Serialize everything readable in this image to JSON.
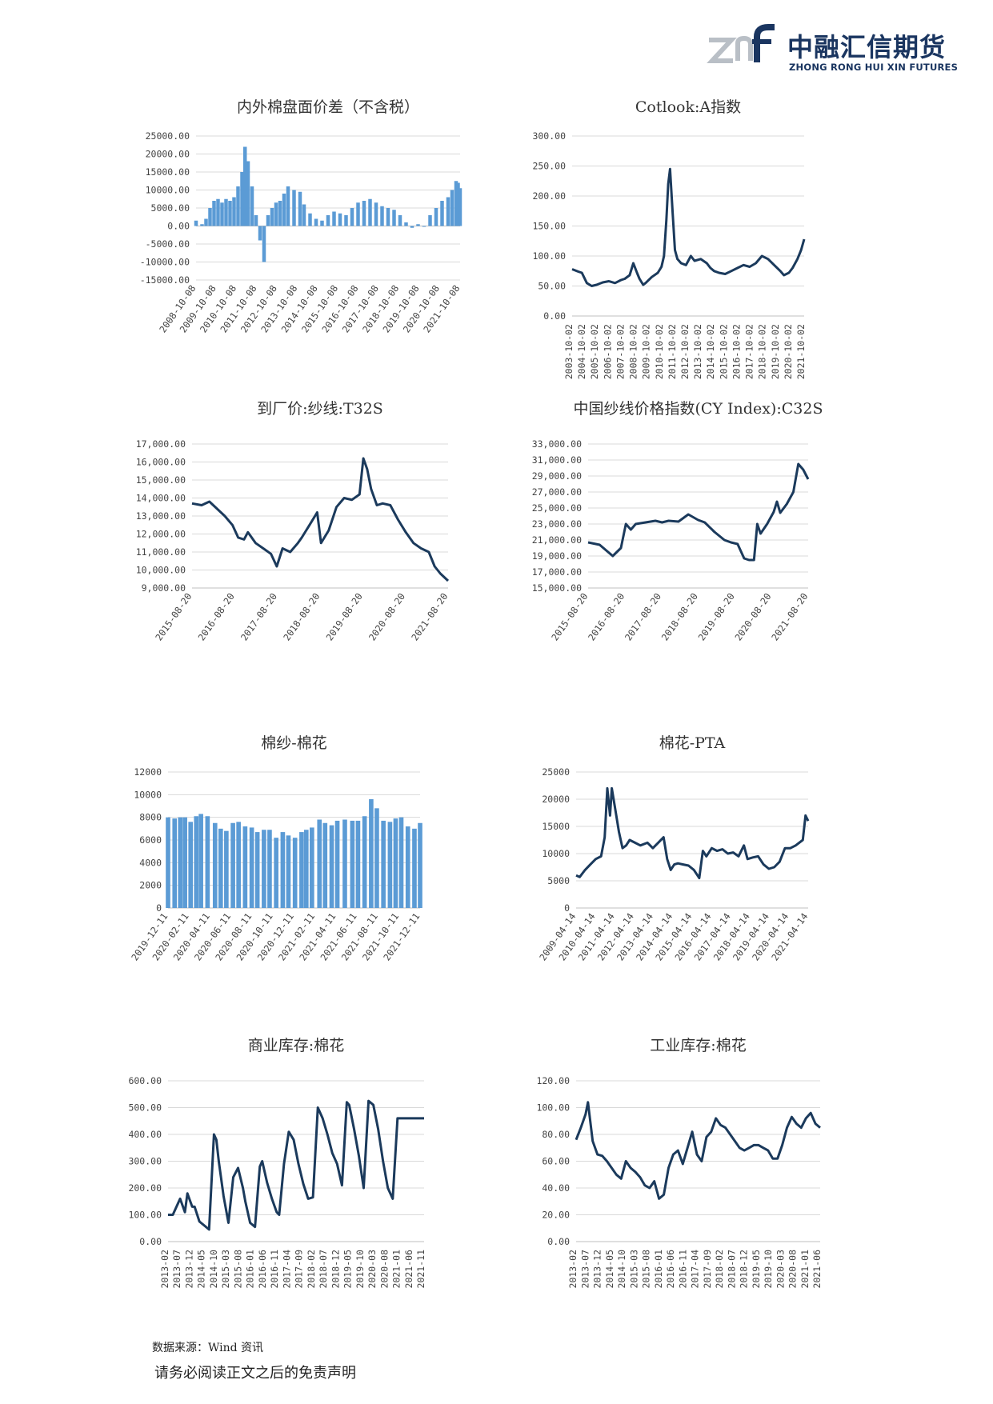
{
  "header": {
    "logo_cn": "中融汇信期货",
    "logo_en": "ZHONG RONG HUI XIN FUTURES",
    "logo_mark": "znf"
  },
  "colors": {
    "line": "#1b3a5c",
    "bar": "#5b9bd5",
    "grid": "#d9d9d9",
    "logo": "#1a3560"
  },
  "footer": {
    "source": "数据来源：Wind 资讯",
    "disclaimer": "请务必阅读正文之后的免责声明"
  },
  "chart_data": [
    {
      "id": "c1",
      "type": "bar",
      "title": "内外棉盘面价差（不含税）",
      "x_axis": "bottom",
      "yticks": [
        "25000.00",
        "20000.00",
        "15000.00",
        "10000.00",
        "5000.00",
        "0.00",
        "-5000.00",
        "-10000.00",
        "-15000.00"
      ],
      "ylim": [
        -15000,
        25000
      ],
      "xticks": [
        "2008-10-08",
        "2009-10-08",
        "2010-10-08",
        "2011-10-08",
        "2012-10-08",
        "2013-10-08",
        "2014-10-08",
        "2015-10-08",
        "2016-10-08",
        "2017-10-08",
        "2018-10-08",
        "2019-10-08",
        "2020-10-08",
        "2021-10-08"
      ],
      "x": [
        2008.6,
        2008.9,
        2009.1,
        2009.3,
        2009.5,
        2009.7,
        2009.9,
        2010.1,
        2010.3,
        2010.5,
        2010.7,
        2010.9,
        2011.05,
        2011.2,
        2011.4,
        2011.6,
        2011.8,
        2012.0,
        2012.2,
        2012.4,
        2012.6,
        2012.8,
        2013.0,
        2013.2,
        2013.5,
        2013.8,
        2014.0,
        2014.3,
        2014.6,
        2014.9,
        2015.2,
        2015.5,
        2015.8,
        2016.1,
        2016.4,
        2016.7,
        2017.0,
        2017.3,
        2017.6,
        2017.9,
        2018.2,
        2018.5,
        2018.8,
        2019.1,
        2019.4,
        2019.7,
        2020.0,
        2020.3,
        2020.6,
        2020.9,
        2021.2,
        2021.4,
        2021.6,
        2021.7,
        2021.8
      ],
      "values": [
        1500,
        500,
        2000,
        5000,
        7000,
        7500,
        6500,
        7500,
        7000,
        8000,
        11000,
        15000,
        22000,
        18000,
        11000,
        3000,
        -4000,
        -10000,
        3000,
        5000,
        6500,
        7000,
        9000,
        11000,
        10000,
        9500,
        6000,
        3500,
        2000,
        1500,
        3000,
        4000,
        3500,
        3000,
        5000,
        6500,
        7000,
        7500,
        6500,
        5500,
        5000,
        4500,
        3000,
        1000,
        -500,
        500,
        0,
        3000,
        5000,
        7000,
        8000,
        10000,
        12500,
        12000,
        10500
      ]
    },
    {
      "id": "c2",
      "type": "line",
      "title": "Cotlook:A指数",
      "x_axis": "bottom",
      "yticks": [
        "300.00",
        "250.00",
        "200.00",
        "150.00",
        "100.00",
        "50.00",
        "0.00"
      ],
      "ylim": [
        0,
        300
      ],
      "xticks": [
        "2003-10-02",
        "2004-10-02",
        "2005-10-02",
        "2006-10-02",
        "2007-10-02",
        "2008-10-02",
        "2009-10-02",
        "2010-10-02",
        "2011-10-02",
        "2012-10-02",
        "2013-10-02",
        "2014-10-02",
        "2015-10-02",
        "2016-10-02",
        "2017-10-02",
        "2018-10-02",
        "2019-10-02",
        "2020-10-02",
        "2021-10-02"
      ],
      "x": [
        2003.0,
        2003.5,
        2003.8,
        2004.2,
        2004.6,
        2005.0,
        2005.5,
        2006.0,
        2006.5,
        2007.0,
        2007.3,
        2007.7,
        2008.0,
        2008.3,
        2008.5,
        2008.8,
        2009.0,
        2009.5,
        2010.0,
        2010.3,
        2010.5,
        2010.7,
        2010.85,
        2011.0,
        2011.2,
        2011.4,
        2011.6,
        2011.9,
        2012.3,
        2012.7,
        2013.0,
        2013.5,
        2014.0,
        2014.3,
        2014.6,
        2015.0,
        2015.5,
        2016.0,
        2016.5,
        2017.0,
        2017.5,
        2018.0,
        2018.5,
        2019.0,
        2019.5,
        2020.0,
        2020.3,
        2020.7,
        2021.0,
        2021.4,
        2021.7,
        2021.95
      ],
      "values": [
        78,
        74,
        72,
        55,
        50,
        52,
        56,
        58,
        55,
        60,
        62,
        68,
        88,
        72,
        62,
        52,
        55,
        65,
        72,
        82,
        100,
        160,
        220,
        245,
        175,
        110,
        95,
        88,
        85,
        100,
        92,
        95,
        88,
        80,
        75,
        72,
        70,
        75,
        80,
        85,
        82,
        88,
        100,
        95,
        85,
        75,
        68,
        72,
        80,
        95,
        110,
        128
      ]
    },
    {
      "id": "c3",
      "type": "line",
      "title": "到厂价:纱线:T32S",
      "x_axis": "bottom",
      "yticks": [
        "17,000.00",
        "16,000.00",
        "15,000.00",
        "14,000.00",
        "13,000.00",
        "12,000.00",
        "11,000.00",
        "10,000.00",
        "9,000.00"
      ],
      "ylim": [
        9000,
        17000
      ],
      "xticks": [
        "2015-08-20",
        "2016-08-20",
        "2017-08-20",
        "2018-08-20",
        "2019-08-20",
        "2020-08-20",
        "2021-08-20"
      ],
      "x": [
        2015.55,
        2015.8,
        2016.0,
        2016.2,
        2016.4,
        2016.6,
        2016.75,
        2016.9,
        2017.0,
        2017.2,
        2017.4,
        2017.6,
        2017.75,
        2017.9,
        2018.1,
        2018.3,
        2018.4,
        2018.6,
        2018.8,
        2018.9,
        2019.1,
        2019.3,
        2019.5,
        2019.7,
        2019.9,
        2020.0,
        2020.1,
        2020.2,
        2020.35,
        2020.5,
        2020.7,
        2020.9,
        2021.1,
        2021.3,
        2021.5,
        2021.7,
        2021.85,
        2022.0,
        2022.2
      ],
      "values": [
        13700,
        13600,
        13800,
        13400,
        13000,
        12500,
        11800,
        11700,
        12100,
        11500,
        11200,
        10900,
        10200,
        11200,
        11000,
        11500,
        11800,
        12500,
        13200,
        11500,
        12200,
        13500,
        14000,
        13900,
        14200,
        16200,
        15600,
        14500,
        13600,
        13700,
        13600,
        12800,
        12100,
        11500,
        11200,
        11000,
        10200,
        9800,
        9400
      ]
    },
    {
      "id": "c4",
      "type": "line",
      "title": "中国纱线价格指数(CY Index):C32S",
      "x_axis": "bottom",
      "yticks": [
        "33,000.00",
        "31,000.00",
        "29,000.00",
        "27,000.00",
        "25,000.00",
        "23,000.00",
        "21,000.00",
        "19,000.00",
        "17,000.00",
        "15,000.00"
      ],
      "ylim": [
        15000,
        33000
      ],
      "xticks": [
        "2015-08-20",
        "2016-08-20",
        "2017-08-20",
        "2018-08-20",
        "2019-08-20",
        "2020-08-20",
        "2021-08-20"
      ],
      "x": [
        2015.55,
        2015.9,
        2016.1,
        2016.3,
        2016.55,
        2016.7,
        2016.85,
        2017.0,
        2017.3,
        2017.6,
        2017.8,
        2018.0,
        2018.3,
        2018.6,
        2018.9,
        2019.1,
        2019.4,
        2019.7,
        2019.9,
        2020.1,
        2020.3,
        2020.45,
        2020.6,
        2020.7,
        2020.8,
        2021.0,
        2021.2,
        2021.3,
        2021.4,
        2021.6,
        2021.8,
        2021.95,
        2022.1,
        2022.25
      ],
      "values": [
        20700,
        20400,
        19700,
        19000,
        20000,
        23000,
        22300,
        23000,
        23200,
        23400,
        23200,
        23400,
        23300,
        24200,
        23500,
        23200,
        22000,
        21000,
        20700,
        20500,
        18700,
        18500,
        18500,
        23000,
        21800,
        23000,
        24500,
        25800,
        24400,
        25500,
        27000,
        30500,
        29800,
        28600
      ]
    },
    {
      "id": "c5",
      "type": "bar",
      "title": "棉纱-棉花",
      "x_axis": "bottom",
      "yticks": [
        "12000",
        "10000",
        "8000",
        "6000",
        "4000",
        "2000",
        "0"
      ],
      "ylim": [
        0,
        12000
      ],
      "xticks": [
        "2019-12-11",
        "2020-02-11",
        "2020-04-11",
        "2020-06-11",
        "2020-08-11",
        "2020-10-11",
        "2020-12-11",
        "2021-02-11",
        "2021-04-11",
        "2021-06-11",
        "2021-08-11",
        "2021-10-11",
        "2021-12-11"
      ],
      "x": [
        0.0,
        0.7,
        1.3,
        1.8,
        2.4,
        3.0,
        3.5,
        4.2,
        5.0,
        5.6,
        6.2,
        6.9,
        7.5,
        8.2,
        8.9,
        9.5,
        10.2,
        10.8,
        11.5,
        12.2,
        12.8,
        13.5,
        14.2,
        14.7,
        15.3,
        16.1,
        16.7,
        17.4,
        18.0,
        18.8,
        19.6,
        20.2,
        20.9,
        21.6,
        22.2,
        22.9,
        23.6,
        24.2,
        24.8,
        25.5,
        26.2,
        26.8
      ],
      "values": [
        8000,
        7900,
        8000,
        8000,
        7600,
        8100,
        8300,
        8100,
        7500,
        7000,
        6800,
        7500,
        7600,
        7200,
        7100,
        6700,
        6900,
        6900,
        6200,
        6700,
        6400,
        6200,
        6700,
        6900,
        7100,
        7800,
        7500,
        7300,
        7700,
        7800,
        7700,
        7700,
        8100,
        9600,
        8800,
        7700,
        7600,
        7900,
        8000,
        7200,
        7000,
        7500
      ]
    },
    {
      "id": "c6",
      "type": "line",
      "title": "棉花-PTA",
      "x_axis": "bottom",
      "yticks": [
        "25000",
        "20000",
        "15000",
        "10000",
        "5000",
        "0"
      ],
      "ylim": [
        0,
        25000
      ],
      "xticks": [
        "2009-04-14",
        "2010-04-14",
        "2011-04-14",
        "2012-04-14",
        "2013-04-14",
        "2014-04-14",
        "2015-04-14",
        "2016-04-14",
        "2017-04-14",
        "2018-04-14",
        "2019-04-14",
        "2020-04-14",
        "2021-04-14"
      ],
      "x": [
        2009.0,
        2009.2,
        2009.5,
        2009.8,
        2010.1,
        2010.4,
        2010.6,
        2010.75,
        2010.9,
        2011.0,
        2011.2,
        2011.4,
        2011.6,
        2011.8,
        2012.0,
        2012.3,
        2012.6,
        2013.0,
        2013.3,
        2013.6,
        2013.9,
        2014.1,
        2014.3,
        2014.5,
        2014.7,
        2015.0,
        2015.3,
        2015.6,
        2015.9,
        2016.1,
        2016.3,
        2016.6,
        2016.9,
        2017.2,
        2017.5,
        2017.8,
        2018.1,
        2018.4,
        2018.6,
        2018.9,
        2019.2,
        2019.5,
        2019.8,
        2020.1,
        2020.4,
        2020.7,
        2021.0,
        2021.3,
        2021.5,
        2021.7,
        2021.85,
        2022.0
      ],
      "values": [
        6000,
        5700,
        7000,
        8000,
        9000,
        9500,
        13000,
        22000,
        17000,
        22000,
        18000,
        14000,
        11000,
        11500,
        12500,
        12000,
        11500,
        12000,
        11000,
        12000,
        13000,
        9000,
        7000,
        8000,
        8200,
        8000,
        7800,
        7000,
        5500,
        10500,
        9500,
        11000,
        10500,
        10800,
        10000,
        10200,
        9500,
        11500,
        9000,
        9300,
        9500,
        8000,
        7200,
        7500,
        8500,
        11000,
        11000,
        11500,
        12000,
        12500,
        17000,
        16000
      ]
    },
    {
      "id": "c7",
      "type": "line",
      "title": "商业库存:棉花",
      "x_axis": "bottom",
      "yticks": [
        "600.00",
        "500.00",
        "400.00",
        "300.00",
        "200.00",
        "100.00",
        "0.00"
      ],
      "ylim": [
        0,
        600
      ],
      "xticks": [
        "2013-02",
        "2013-07",
        "2013-12",
        "2014-05",
        "2014-10",
        "2015-03",
        "2015-08",
        "2016-01",
        "2016-06",
        "2016-11",
        "2017-04",
        "2017-09",
        "2018-02",
        "2018-07",
        "2018-12",
        "2019-05",
        "2019-10",
        "2020-03",
        "2020-08",
        "2021-01",
        "2021-06",
        "2021-11"
      ],
      "x": [
        0,
        2,
        5,
        7,
        8,
        10,
        11,
        13,
        15,
        17,
        19,
        20,
        21,
        23,
        25,
        27,
        29,
        31,
        32,
        34,
        36,
        38,
        39,
        41,
        43,
        45,
        46,
        48,
        50,
        52,
        54,
        56,
        58,
        60,
        62,
        64,
        66,
        68,
        70,
        72,
        74,
        75,
        77,
        79,
        81,
        83,
        85,
        87,
        89,
        91,
        93,
        95,
        97,
        99,
        101,
        103,
        104,
        106
      ],
      "values": [
        100,
        100,
        160,
        110,
        180,
        130,
        130,
        75,
        60,
        45,
        400,
        380,
        300,
        170,
        70,
        240,
        275,
        200,
        150,
        70,
        55,
        280,
        300,
        220,
        160,
        110,
        100,
        290,
        410,
        380,
        290,
        215,
        160,
        165,
        500,
        460,
        400,
        330,
        290,
        210,
        520,
        510,
        420,
        320,
        200,
        525,
        510,
        420,
        300,
        200,
        160,
        460,
        460,
        460,
        460,
        460,
        460,
        460
      ]
    },
    {
      "id": "c8",
      "type": "line",
      "title": "工业库存:棉花",
      "x_axis": "bottom",
      "yticks": [
        "120.00",
        "100.00",
        "80.00",
        "60.00",
        "40.00",
        "20.00",
        "0.00"
      ],
      "ylim": [
        0,
        120
      ],
      "xticks": [
        "2013-02",
        "2013-07",
        "2013-12",
        "2014-05",
        "2014-10",
        "2015-03",
        "2015-08",
        "2016-01",
        "2016-06",
        "2016-11",
        "2017-04",
        "2017-09",
        "2018-02",
        "2018-07",
        "2018-12",
        "2019-05",
        "2019-10",
        "2020-03",
        "2020-08",
        "2021-01",
        "2021-06"
      ],
      "x": [
        0,
        2,
        4,
        5,
        7,
        9,
        11,
        13,
        15,
        17,
        19,
        21,
        23,
        25,
        27,
        29,
        31,
        33,
        35,
        37,
        39,
        41,
        43,
        45,
        47,
        49,
        51,
        53,
        55,
        57,
        59,
        61,
        63,
        65,
        67,
        69,
        71,
        73,
        75,
        77,
        79,
        81,
        83,
        85,
        87,
        89,
        91,
        93,
        95,
        97,
        99,
        101,
        103
      ],
      "values": [
        76,
        85,
        95,
        104,
        75,
        65,
        64,
        60,
        55,
        50,
        47,
        60,
        55,
        52,
        48,
        42,
        40,
        45,
        32,
        35,
        55,
        65,
        68,
        58,
        70,
        82,
        65,
        60,
        78,
        82,
        92,
        87,
        85,
        80,
        75,
        70,
        68,
        70,
        72,
        72,
        70,
        68,
        62,
        62,
        72,
        85,
        93,
        88,
        85,
        92,
        96,
        88,
        85
      ]
    }
  ]
}
